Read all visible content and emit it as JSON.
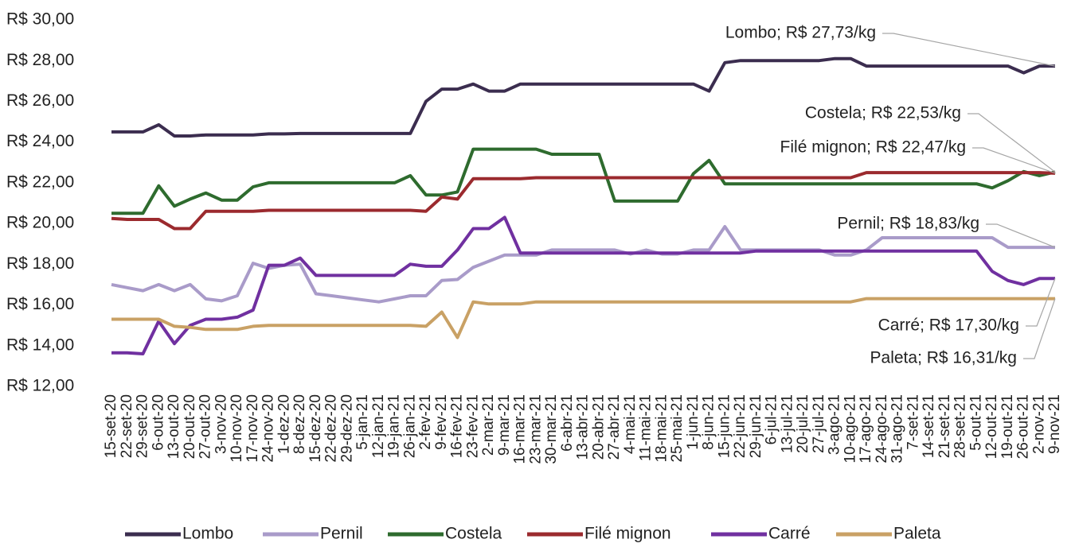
{
  "chart_data": {
    "type": "line",
    "categories": [
      "15-set-20",
      "22-set-20",
      "29-set-20",
      "6-out-20",
      "13-out-20",
      "20-out-20",
      "27-out-20",
      "3-nov-20",
      "10-nov-20",
      "17-nov-20",
      "24-nov-20",
      "1-dez-20",
      "8-dez-20",
      "15-dez-20",
      "22-dez-20",
      "29-dez-20",
      "5-jan-21",
      "12-jan-21",
      "19-jan-21",
      "26-jan-21",
      "2-fev-21",
      "9-fev-21",
      "16-fev-21",
      "23-fev-21",
      "2-mar-21",
      "9-mar-21",
      "16-mar-21",
      "23-mar-21",
      "30-mar-21",
      "6-abr-21",
      "13-abr-21",
      "20-abr-21",
      "27-abr-21",
      "4-mai-21",
      "11-mai-21",
      "18-mai-21",
      "25-mai-21",
      "1-jun-21",
      "8-jun-21",
      "15-jun-21",
      "22-jun-21",
      "29-jun-21",
      "6-jul-21",
      "13-jul-21",
      "20-jul-21",
      "27-jul-21",
      "3-ago-21",
      "10-ago-21",
      "17-ago-21",
      "24-ago-21",
      "31-ago-21",
      "7-set-21",
      "14-set-21",
      "21-set-21",
      "28-set-21",
      "5-out-21",
      "12-out-21",
      "19-out-21",
      "26-out-21",
      "2-nov-21",
      "9-nov-21"
    ],
    "series": [
      {
        "name": "Lombo",
        "color": "#3b2d4f",
        "values": [
          24.5,
          24.5,
          24.5,
          24.85,
          24.3,
          24.3,
          24.35,
          24.35,
          24.35,
          24.35,
          24.4,
          24.4,
          24.42,
          24.42,
          24.42,
          24.42,
          24.42,
          24.42,
          24.42,
          24.42,
          26.0,
          26.6,
          26.6,
          26.85,
          26.5,
          26.5,
          26.85,
          26.85,
          26.85,
          26.85,
          26.85,
          26.85,
          26.85,
          26.85,
          26.85,
          26.85,
          26.85,
          26.85,
          26.5,
          27.9,
          28.0,
          28.0,
          28.0,
          28.0,
          28.0,
          28.0,
          28.1,
          28.1,
          27.73,
          27.73,
          27.73,
          27.73,
          27.73,
          27.73,
          27.73,
          27.73,
          27.73,
          27.73,
          27.4,
          27.73,
          27.73
        ]
      },
      {
        "name": "Pernil",
        "color": "#a99bc9",
        "values": [
          17.0,
          16.85,
          16.7,
          17.0,
          16.7,
          17.0,
          16.3,
          16.2,
          16.45,
          18.05,
          17.8,
          17.95,
          18.0,
          16.55,
          16.45,
          16.35,
          16.25,
          16.15,
          16.3,
          16.45,
          16.45,
          17.2,
          17.25,
          17.85,
          18.15,
          18.45,
          18.45,
          18.45,
          18.7,
          18.7,
          18.7,
          18.7,
          18.7,
          18.5,
          18.7,
          18.5,
          18.5,
          18.7,
          18.7,
          19.85,
          18.7,
          18.7,
          18.7,
          18.7,
          18.7,
          18.7,
          18.45,
          18.45,
          18.7,
          19.3,
          19.3,
          19.3,
          19.3,
          19.3,
          19.3,
          19.3,
          19.3,
          18.83,
          18.83,
          18.83,
          18.83
        ]
      },
      {
        "name": "Costela",
        "color": "#2e6b2e",
        "values": [
          20.5,
          20.5,
          20.5,
          21.85,
          20.85,
          21.2,
          21.5,
          21.15,
          21.15,
          21.8,
          22.0,
          22.0,
          22.0,
          22.0,
          22.0,
          22.0,
          22.0,
          22.0,
          22.0,
          22.35,
          21.4,
          21.4,
          21.55,
          23.65,
          23.65,
          23.65,
          23.65,
          23.65,
          23.4,
          23.4,
          23.4,
          23.4,
          21.1,
          21.1,
          21.1,
          21.1,
          21.1,
          22.45,
          23.1,
          21.95,
          21.95,
          21.95,
          21.95,
          21.95,
          21.95,
          21.95,
          21.95,
          21.95,
          21.95,
          21.95,
          21.95,
          21.95,
          21.95,
          21.95,
          21.95,
          21.95,
          21.75,
          22.1,
          22.55,
          22.35,
          22.53
        ]
      },
      {
        "name": "Filé mignon",
        "color": "#9b2a2e",
        "values": [
          20.25,
          20.2,
          20.2,
          20.2,
          19.75,
          19.75,
          20.6,
          20.6,
          20.6,
          20.6,
          20.65,
          20.65,
          20.65,
          20.65,
          20.65,
          20.65,
          20.65,
          20.65,
          20.65,
          20.65,
          20.6,
          21.3,
          21.2,
          22.2,
          22.2,
          22.2,
          22.2,
          22.25,
          22.25,
          22.25,
          22.25,
          22.25,
          22.25,
          22.25,
          22.25,
          22.25,
          22.25,
          22.25,
          22.25,
          22.25,
          22.25,
          22.25,
          22.25,
          22.25,
          22.25,
          22.25,
          22.25,
          22.25,
          22.5,
          22.5,
          22.5,
          22.5,
          22.5,
          22.5,
          22.5,
          22.5,
          22.5,
          22.5,
          22.5,
          22.5,
          22.47
        ]
      },
      {
        "name": "Carré",
        "color": "#7030a0",
        "values": [
          13.65,
          13.65,
          13.6,
          15.2,
          14.1,
          15.0,
          15.3,
          15.3,
          15.4,
          15.75,
          17.95,
          17.95,
          18.3,
          17.45,
          17.45,
          17.45,
          17.45,
          17.45,
          17.45,
          18.0,
          17.9,
          17.9,
          18.7,
          19.75,
          19.75,
          20.3,
          18.55,
          18.55,
          18.55,
          18.55,
          18.55,
          18.55,
          18.55,
          18.55,
          18.55,
          18.55,
          18.55,
          18.55,
          18.55,
          18.55,
          18.55,
          18.65,
          18.65,
          18.65,
          18.65,
          18.65,
          18.65,
          18.65,
          18.65,
          18.65,
          18.65,
          18.65,
          18.65,
          18.65,
          18.65,
          18.65,
          17.65,
          17.2,
          17.0,
          17.3,
          17.3
        ]
      },
      {
        "name": "Paleta",
        "color": "#c9a165",
        "values": [
          15.3,
          15.3,
          15.3,
          15.3,
          14.95,
          14.9,
          14.8,
          14.8,
          14.8,
          14.95,
          15.0,
          15.0,
          15.0,
          15.0,
          15.0,
          15.0,
          15.0,
          15.0,
          15.0,
          15.0,
          14.95,
          15.65,
          14.4,
          16.15,
          16.05,
          16.05,
          16.05,
          16.15,
          16.15,
          16.15,
          16.15,
          16.15,
          16.15,
          16.15,
          16.15,
          16.15,
          16.15,
          16.15,
          16.15,
          16.15,
          16.15,
          16.15,
          16.15,
          16.15,
          16.15,
          16.15,
          16.15,
          16.15,
          16.31,
          16.31,
          16.31,
          16.31,
          16.31,
          16.31,
          16.31,
          16.31,
          16.31,
          16.31,
          16.31,
          16.31,
          16.31
        ]
      }
    ],
    "ylim": [
      12,
      30
    ],
    "yticks": [
      {
        "value": 12,
        "label": "R$ 12,00"
      },
      {
        "value": 14,
        "label": "R$ 14,00"
      },
      {
        "value": 16,
        "label": "R$ 16,00"
      },
      {
        "value": 18,
        "label": "R$ 18,00"
      },
      {
        "value": 20,
        "label": "R$ 20,00"
      },
      {
        "value": 22,
        "label": "R$ 22,00"
      },
      {
        "value": 24,
        "label": "R$ 24,00"
      },
      {
        "value": 26,
        "label": "R$ 26,00"
      },
      {
        "value": 28,
        "label": "R$ 28,00"
      },
      {
        "value": 30,
        "label": "R$ 30,00"
      }
    ],
    "annotations": [
      "Lombo; R$ 27,73/kg",
      "Costela; R$ 22,53/kg",
      "Filé mignon; R$ 22,47/kg",
      "Pernil; R$ 18,83/kg",
      "Carré; R$ 17,30/kg",
      "Paleta; R$ 16,31/kg"
    ]
  }
}
